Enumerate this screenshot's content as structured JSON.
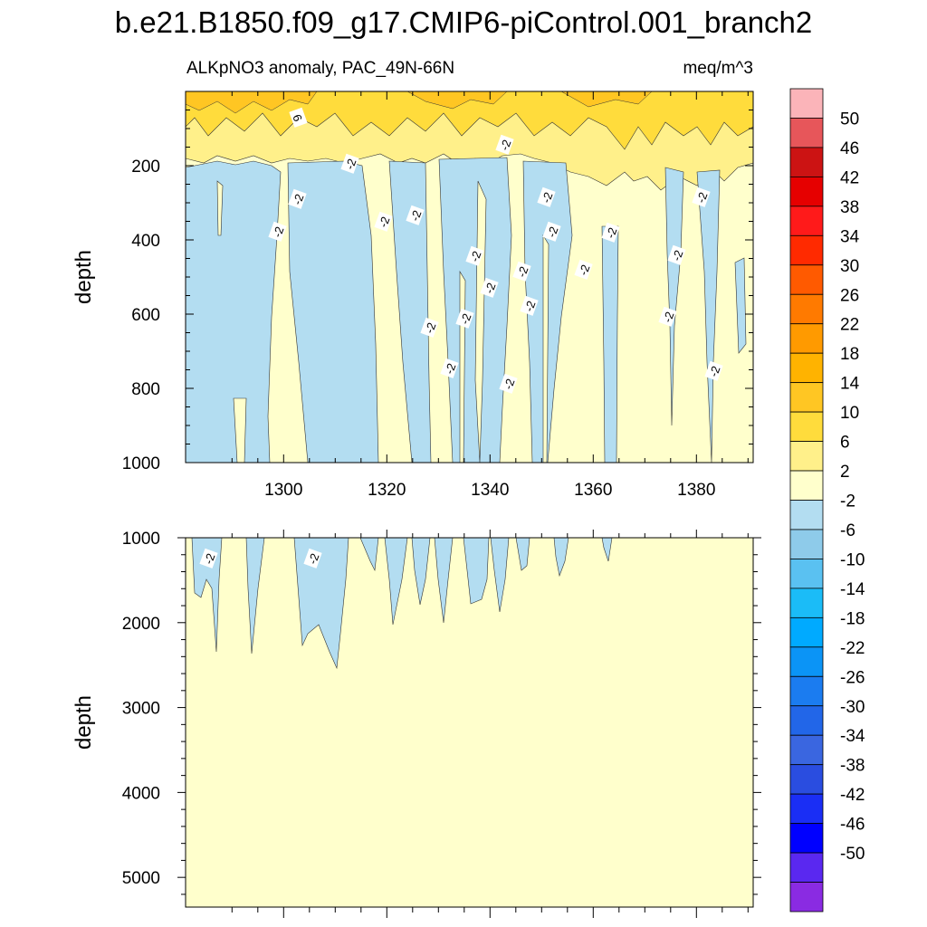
{
  "chart_data": [
    {
      "type": "contour",
      "panel": "top",
      "title": "b.e21.B1850.f09_g17.CMIP6-piControl.001_branch2",
      "subtitle_left": "ALKpNO3 anomaly, PAC_49N-66N",
      "subtitle_right": "meq/m^3",
      "xlabel": "",
      "ylabel": "depth",
      "xlim": [
        1281,
        1391
      ],
      "ylim": [
        1000,
        0
      ],
      "x_ticks": [
        1300,
        1320,
        1340,
        1360,
        1380
      ],
      "y_ticks": [
        200,
        400,
        600,
        800,
        1000
      ],
      "contour_labels": [
        "6",
        "-2",
        "-2",
        "-2",
        "-2",
        "-2",
        "-2",
        "-2",
        "-2",
        "-2",
        "-2",
        "-2",
        "-2",
        "-2",
        "-2",
        "-2",
        "-2",
        "-2",
        "-2",
        "-2",
        "-2",
        "-2",
        "-2"
      ]
    },
    {
      "type": "contour",
      "panel": "bottom",
      "xlabel": "",
      "ylabel": "depth",
      "xlim": [
        1281,
        1391
      ],
      "ylim": [
        5350,
        1000
      ],
      "y_ticks": [
        1000,
        2000,
        3000,
        4000,
        5000
      ],
      "contour_labels": [
        "-2",
        "-2"
      ]
    }
  ],
  "colorbar": {
    "labels": [
      "50",
      "46",
      "42",
      "38",
      "34",
      "30",
      "26",
      "22",
      "18",
      "14",
      "10",
      "6",
      "2",
      "-2",
      "-6",
      "-10",
      "-14",
      "-18",
      "-22",
      "-26",
      "-30",
      "-34",
      "-38",
      "-42",
      "-46",
      "-50"
    ],
    "colors": [
      "#fbb4b9",
      "#e7565a",
      "#cc1313",
      "#e60000",
      "#ff1a1a",
      "#ff2a00",
      "#ff5a00",
      "#ff7a00",
      "#ff9a00",
      "#ffb300",
      "#ffc623",
      "#ffdc3c",
      "#fff08a",
      "#ffffcc",
      "#b3ddf1",
      "#8ecbea",
      "#5ac1f1",
      "#1bbcf7",
      "#00aaff",
      "#0b94f6",
      "#1b7cf0",
      "#2266e8",
      "#3a66e0",
      "#2a4de0",
      "#1a2ef5",
      "#0000ff",
      "#5a28f0",
      "#8a2be2"
    ]
  }
}
